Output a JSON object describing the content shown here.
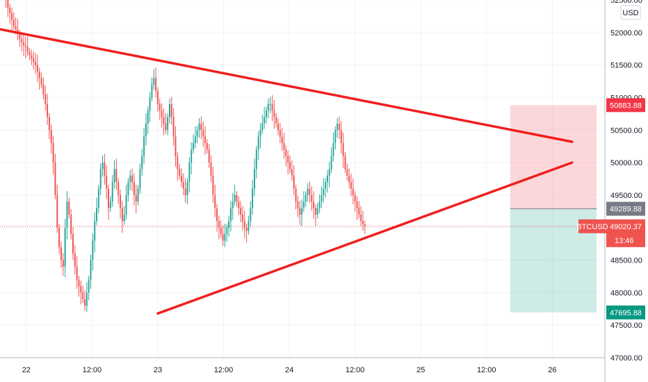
{
  "chart_data": {
    "type": "candlestick",
    "symbol": "BTCUSD",
    "currency": "USD",
    "y_axis": {
      "min": 47000,
      "max": 52500,
      "ticks": [
        47000,
        47500,
        48000,
        48500,
        49000,
        49500,
        50000,
        50500,
        51000,
        51500,
        52000,
        52500
      ],
      "tick_labels": [
        "47000.00",
        "47500.00",
        "48000.00",
        "48500.00",
        "49000.00",
        "49500.00",
        "50000.00",
        "50500.00",
        "51000.00",
        "51500.00",
        "52000.00",
        "52500.00"
      ]
    },
    "x_axis": {
      "min": 21.8,
      "max": 26.4,
      "ticks": [
        22,
        22.5,
        23,
        23.5,
        24,
        24.5,
        25,
        25.5,
        26
      ],
      "tick_labels": [
        "22",
        "12:00",
        "23",
        "12:00",
        "24",
        "12:00",
        "25",
        "12:00",
        "26"
      ]
    },
    "grid": true,
    "trendlines": [
      {
        "name": "upper",
        "x1": 21.8,
        "y1": 52050,
        "x2": 26.15,
        "y2": 50320
      },
      {
        "name": "lower",
        "x1": 23.0,
        "y1": 47680,
        "x2": 26.15,
        "y2": 50000
      }
    ],
    "position": {
      "entry": 49289.88,
      "stop": 50883.88,
      "target": 47695.88,
      "x_start": 25.68,
      "x_end": 26.35
    },
    "price_labels": {
      "stop": "50883.88",
      "entry": "49289.88",
      "current": "49020.37",
      "target": "47695.88",
      "symbol": "BTCUSD",
      "countdown": "13:46"
    },
    "current_price": 49020.37,
    "candles": {
      "x_start": 21.8,
      "x_step": 0.015,
      "close": [
        52700,
        52650,
        52600,
        52500,
        52380,
        52300,
        52200,
        52100,
        52050,
        51980,
        51900,
        51850,
        51800,
        51780,
        51700,
        51650,
        51600,
        51550,
        51500,
        51400,
        51300,
        51200,
        51050,
        50900,
        50700,
        50500,
        50300,
        50000,
        49500,
        49000,
        48700,
        48500,
        48400,
        49000,
        49400,
        49200,
        48900,
        48600,
        48400,
        48200,
        48100,
        48000,
        47900,
        47800,
        48000,
        48200,
        48500,
        48800,
        49100,
        49300,
        49600,
        49900,
        50000,
        49800,
        49600,
        49300,
        49400,
        49700,
        49900,
        49700,
        49500,
        49300,
        49100,
        49200,
        49500,
        49700,
        49800,
        49700,
        49500,
        49400,
        49600,
        49900,
        50100,
        50400,
        50600,
        50800,
        51000,
        51200,
        51300,
        51100,
        50900,
        50800,
        50700,
        50600,
        50500,
        50700,
        50900,
        50700,
        50400,
        50100,
        49900,
        49800,
        49700,
        49600,
        49500,
        49700,
        50000,
        50200,
        50300,
        50400,
        50500,
        50600,
        50500,
        50400,
        50300,
        50200,
        50000,
        49800,
        49500,
        49300,
        49100,
        49000,
        48900,
        48800,
        48900,
        49000,
        49100,
        49300,
        49400,
        49500,
        49400,
        49300,
        49200,
        49100,
        49000,
        48950,
        49100,
        49300,
        49600,
        49900,
        50200,
        50400,
        50500,
        50600,
        50700,
        50800,
        50900,
        50900,
        50800,
        50700,
        50600,
        50500,
        50400,
        50300,
        50200,
        50100,
        50000,
        49900,
        49800,
        49600,
        49400,
        49300,
        49200,
        49300,
        49400,
        49500,
        49600,
        49500,
        49400,
        49300,
        49200,
        49300,
        49400,
        49500,
        49600,
        49700,
        49800,
        49900,
        50100,
        50300,
        50500,
        50600,
        50500,
        50300,
        50100,
        49900,
        49800,
        49700,
        49600,
        49500,
        49400,
        49300,
        49200,
        49100,
        49050,
        49020
      ]
    }
  }
}
